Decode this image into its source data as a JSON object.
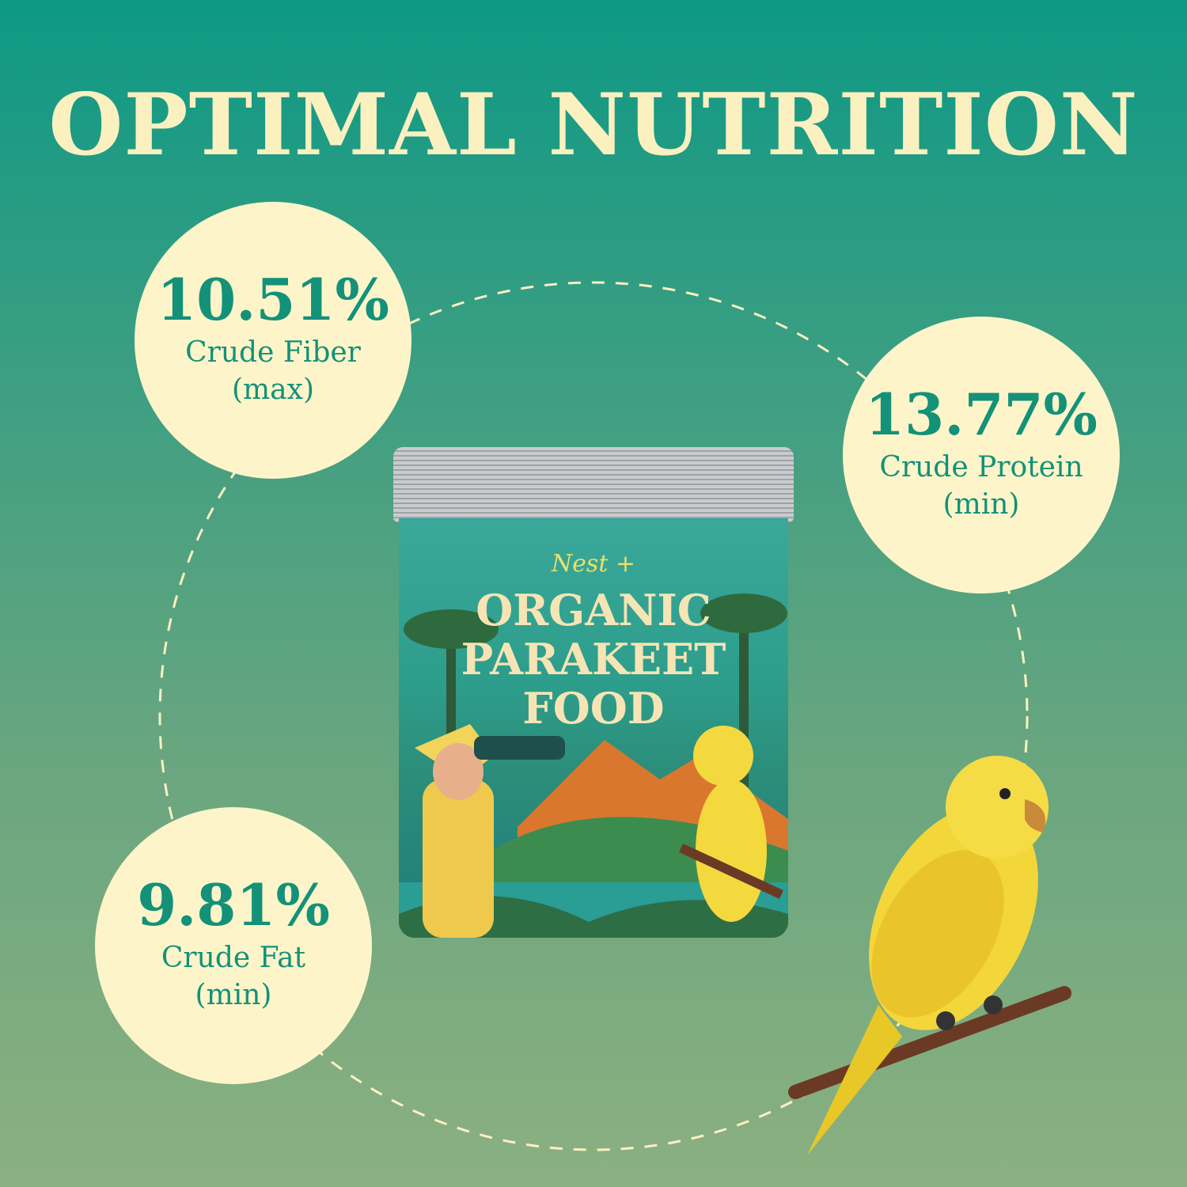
{
  "title": "OPTIMAL NUTRITION",
  "stats": [
    {
      "value": "10.51%",
      "label": "Crude Fiber",
      "qualifier": "(max)"
    },
    {
      "value": "13.77%",
      "label": "Crude Protein",
      "qualifier": "(min)"
    },
    {
      "value": "9.81%",
      "label": "Crude Fat",
      "qualifier": "(min)"
    }
  ],
  "product": {
    "brand": "Nest +",
    "line1": "ORGANIC",
    "line2": "PARAKEET",
    "line3": "FOOD"
  },
  "colors": {
    "accent": "#139179",
    "circle": "#fdf5c9",
    "title": "#fbf0c0",
    "bird": "#f3d63a"
  }
}
